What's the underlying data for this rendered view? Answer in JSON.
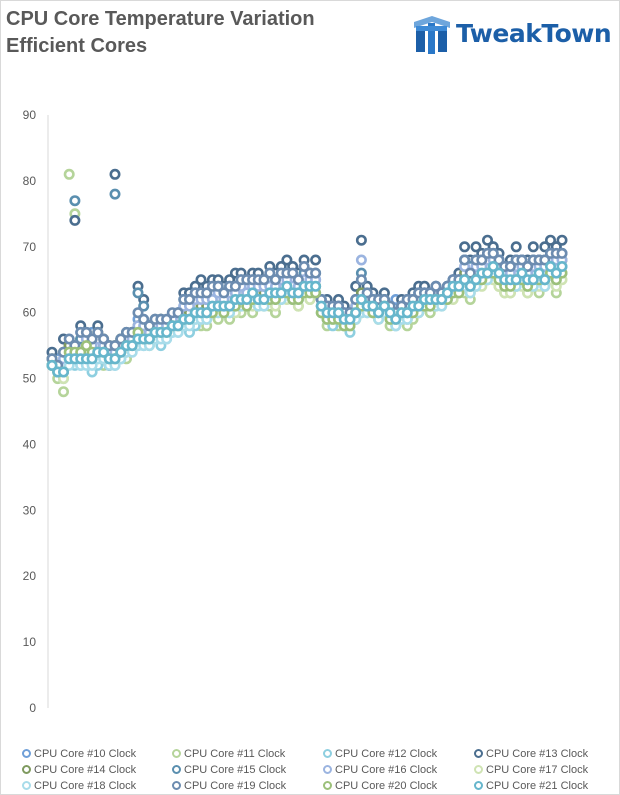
{
  "header": {
    "title_line1": "CPU Core Temperature Variation",
    "title_line2": "Efficient Cores"
  },
  "logo": {
    "text": "TweakTown",
    "icon": "tweaktown-logo-icon",
    "color": "#1c5fa8"
  },
  "chart_data": {
    "type": "scatter",
    "title": "CPU Core Temperature Variation Efficient Cores",
    "xlabel": "",
    "ylabel": "",
    "ylim": [
      0,
      90
    ],
    "yticks": [
      0,
      10,
      20,
      30,
      40,
      50,
      60,
      70,
      80,
      90
    ],
    "grid": false,
    "legend_position": "bottom",
    "samples": 90,
    "series": [
      {
        "name": "CPU Core #10 Clock",
        "color": "#6f9fd8",
        "values": [
          52,
          53,
          51,
          55,
          54,
          56,
          55,
          57,
          56,
          55,
          54,
          53,
          55,
          56,
          57,
          59,
          58,
          57,
          58,
          59,
          58,
          59,
          60,
          61,
          61,
          62,
          63,
          61,
          62,
          63,
          62,
          63,
          62,
          64,
          63,
          64,
          63,
          64,
          65,
          64,
          64,
          65,
          64,
          63,
          66,
          64,
          65,
          62,
          60,
          59,
          60,
          59,
          58,
          60,
          62,
          63,
          62,
          61,
          62,
          61,
          62,
          61,
          60,
          61,
          62,
          63,
          62,
          63,
          62,
          64,
          65,
          66,
          68,
          66,
          67,
          68,
          69,
          70,
          68,
          66,
          66,
          67,
          68,
          66,
          67,
          68,
          67,
          69,
          70,
          69
        ]
      },
      {
        "name": "CPU Core #11 Clock",
        "color": "#b5d49a",
        "values": [
          52,
          50,
          48,
          81,
          75,
          55,
          54,
          52,
          53,
          52,
          52,
          54,
          54,
          53,
          55,
          56,
          56,
          55,
          57,
          58,
          57,
          58,
          58,
          59,
          58,
          59,
          58,
          58,
          60,
          59,
          60,
          59,
          61,
          60,
          61,
          60,
          62,
          61,
          61,
          60,
          62,
          63,
          62,
          61,
          63,
          62,
          63,
          60,
          58,
          59,
          58,
          59,
          58,
          59,
          60,
          61,
          60,
          59,
          60,
          58,
          59,
          60,
          58,
          59,
          60,
          61,
          60,
          61,
          62,
          62,
          63,
          63,
          63,
          62,
          64,
          65,
          65,
          66,
          64,
          63,
          63,
          64,
          65,
          63,
          64,
          63,
          64,
          65,
          63,
          66
        ]
      },
      {
        "name": "CPU Core #12 Clock",
        "color": "#8ecfe0",
        "values": [
          52,
          51,
          50,
          53,
          52,
          52,
          53,
          51,
          52,
          54,
          53,
          52,
          53,
          54,
          55,
          55,
          55,
          56,
          57,
          55,
          56,
          57,
          57,
          58,
          57,
          58,
          59,
          59,
          60,
          61,
          60,
          61,
          61,
          62,
          62,
          63,
          62,
          62,
          63,
          62,
          63,
          64,
          63,
          62,
          64,
          64,
          64,
          61,
          59,
          58,
          59,
          58,
          57,
          59,
          61,
          61,
          61,
          60,
          61,
          59,
          58,
          59,
          59,
          60,
          61,
          62,
          61,
          62,
          62,
          63,
          64,
          64,
          65,
          64,
          65,
          66,
          66,
          67,
          66,
          65,
          64,
          65,
          66,
          64,
          65,
          66,
          65,
          67,
          66,
          67
        ]
      },
      {
        "name": "CPU Core #13 Clock",
        "color": "#4b6e8f",
        "values": [
          54,
          52,
          56,
          55,
          74,
          58,
          56,
          55,
          58,
          53,
          52,
          81,
          56,
          57,
          57,
          64,
          62,
          58,
          59,
          59,
          58,
          58,
          60,
          63,
          63,
          64,
          65,
          64,
          65,
          65,
          64,
          65,
          66,
          66,
          65,
          66,
          66,
          65,
          67,
          66,
          67,
          68,
          67,
          66,
          68,
          66,
          68,
          62,
          62,
          60,
          62,
          61,
          60,
          64,
          71,
          64,
          63,
          62,
          63,
          60,
          60,
          62,
          62,
          63,
          64,
          64,
          63,
          64,
          63,
          64,
          65,
          66,
          70,
          68,
          70,
          69,
          71,
          70,
          69,
          67,
          68,
          70,
          68,
          68,
          70,
          68,
          70,
          71,
          70,
          71
        ]
      },
      {
        "name": "CPU Core #14 Clock",
        "color": "#7f9a5f",
        "values": [
          53,
          52,
          54,
          55,
          55,
          56,
          55,
          56,
          57,
          56,
          55,
          55,
          56,
          56,
          57,
          58,
          57,
          58,
          58,
          59,
          58,
          59,
          59,
          60,
          60,
          61,
          61,
          61,
          62,
          62,
          61,
          62,
          62,
          63,
          63,
          63,
          63,
          63,
          64,
          63,
          64,
          64,
          64,
          63,
          65,
          64,
          64,
          61,
          60,
          60,
          60,
          59,
          59,
          61,
          63,
          62,
          61,
          61,
          62,
          60,
          60,
          61,
          61,
          61,
          62,
          62,
          62,
          63,
          63,
          63,
          64,
          65,
          66,
          65,
          66,
          67,
          67,
          68,
          67,
          65,
          65,
          66,
          67,
          65,
          66,
          67,
          66,
          68,
          67,
          68
        ]
      },
      {
        "name": "CPU Core #15 Clock",
        "color": "#5a8faf",
        "values": [
          52,
          51,
          52,
          54,
          77,
          56,
          57,
          54,
          55,
          55,
          54,
          78,
          55,
          56,
          56,
          63,
          61,
          57,
          58,
          58,
          58,
          59,
          59,
          62,
          62,
          63,
          63,
          62,
          63,
          64,
          63,
          64,
          64,
          65,
          64,
          65,
          64,
          64,
          65,
          65,
          65,
          66,
          65,
          64,
          66,
          65,
          66,
          62,
          61,
          60,
          61,
          60,
          59,
          62,
          66,
          62,
          62,
          61,
          62,
          60,
          59,
          61,
          61,
          62,
          63,
          63,
          62,
          63,
          63,
          63,
          64,
          65,
          68,
          67,
          68,
          68,
          69,
          69,
          68,
          66,
          67,
          68,
          67,
          67,
          68,
          67,
          68,
          69,
          68,
          69
        ]
      },
      {
        "name": "CPU Core #16 Clock",
        "color": "#9bb4e0",
        "values": [
          52,
          52,
          53,
          54,
          55,
          57,
          56,
          55,
          56,
          55,
          54,
          54,
          55,
          56,
          56,
          58,
          58,
          57,
          58,
          58,
          58,
          59,
          60,
          61,
          61,
          62,
          62,
          62,
          62,
          63,
          62,
          63,
          63,
          64,
          63,
          64,
          64,
          64,
          64,
          64,
          65,
          65,
          64,
          64,
          65,
          65,
          65,
          62,
          61,
          60,
          60,
          59,
          59,
          61,
          68,
          62,
          62,
          61,
          61,
          60,
          60,
          61,
          61,
          62,
          62,
          63,
          62,
          63,
          63,
          63,
          64,
          65,
          67,
          66,
          67,
          67,
          68,
          68,
          67,
          66,
          66,
          67,
          67,
          66,
          67,
          67,
          67,
          68,
          68,
          68
        ]
      },
      {
        "name": "CPU Core #17 Clock",
        "color": "#cfe3b3",
        "values": [
          52,
          51,
          50,
          53,
          53,
          53,
          54,
          53,
          53,
          53,
          53,
          53,
          54,
          54,
          55,
          56,
          56,
          56,
          57,
          57,
          57,
          58,
          58,
          59,
          59,
          59,
          59,
          59,
          60,
          60,
          60,
          60,
          60,
          61,
          61,
          61,
          61,
          61,
          62,
          61,
          62,
          62,
          62,
          61,
          63,
          62,
          63,
          60,
          59,
          59,
          59,
          58,
          58,
          59,
          60,
          60,
          60,
          59,
          60,
          59,
          59,
          59,
          59,
          60,
          60,
          61,
          61,
          61,
          61,
          62,
          62,
          63,
          64,
          63,
          64,
          64,
          65,
          65,
          64,
          63,
          63,
          64,
          64,
          63,
          64,
          64,
          64,
          65,
          64,
          65
        ]
      },
      {
        "name": "CPU Core #18 Clock",
        "color": "#a8dcea",
        "values": [
          52,
          51,
          51,
          52,
          53,
          52,
          52,
          52,
          53,
          53,
          52,
          52,
          53,
          54,
          54,
          55,
          55,
          55,
          56,
          56,
          56,
          57,
          57,
          58,
          58,
          59,
          59,
          59,
          60,
          60,
          60,
          60,
          61,
          61,
          61,
          62,
          61,
          61,
          62,
          62,
          62,
          63,
          62,
          62,
          63,
          63,
          63,
          60,
          59,
          59,
          59,
          58,
          58,
          59,
          60,
          60,
          60,
          59,
          60,
          59,
          58,
          59,
          59,
          60,
          60,
          61,
          61,
          61,
          61,
          62,
          63,
          63,
          64,
          63,
          64,
          65,
          65,
          66,
          65,
          64,
          64,
          64,
          65,
          64,
          64,
          65,
          64,
          66,
          65,
          66
        ]
      },
      {
        "name": "CPU Core #19 Clock",
        "color": "#6c8cb0",
        "values": [
          53,
          52,
          54,
          56,
          55,
          57,
          57,
          56,
          57,
          56,
          55,
          55,
          56,
          57,
          57,
          60,
          59,
          58,
          59,
          59,
          59,
          60,
          60,
          62,
          62,
          63,
          63,
          63,
          64,
          64,
          63,
          64,
          64,
          65,
          65,
          65,
          65,
          65,
          66,
          65,
          66,
          66,
          66,
          65,
          67,
          66,
          66,
          62,
          61,
          61,
          61,
          60,
          60,
          62,
          65,
          63,
          62,
          62,
          62,
          61,
          60,
          61,
          62,
          62,
          63,
          63,
          63,
          64,
          63,
          64,
          65,
          65,
          68,
          66,
          68,
          68,
          69,
          69,
          68,
          67,
          67,
          68,
          68,
          67,
          68,
          68,
          68,
          69,
          69,
          69
        ]
      },
      {
        "name": "CPU Core #20 Clock",
        "color": "#9cc07a",
        "values": [
          52,
          51,
          51,
          54,
          54,
          54,
          55,
          54,
          54,
          54,
          53,
          53,
          54,
          55,
          55,
          57,
          56,
          56,
          57,
          57,
          57,
          58,
          58,
          59,
          59,
          60,
          60,
          60,
          60,
          61,
          60,
          61,
          61,
          62,
          61,
          62,
          62,
          62,
          62,
          62,
          63,
          63,
          62,
          62,
          63,
          63,
          63,
          60,
          59,
          59,
          59,
          58,
          58,
          60,
          61,
          61,
          60,
          60,
          61,
          59,
          59,
          60,
          60,
          60,
          61,
          61,
          61,
          62,
          62,
          62,
          63,
          63,
          65,
          64,
          65,
          65,
          66,
          66,
          65,
          64,
          64,
          65,
          65,
          64,
          65,
          65,
          65,
          66,
          65,
          66
        ]
      },
      {
        "name": "CPU Core #21 Clock",
        "color": "#66b6cc",
        "values": [
          52,
          51,
          51,
          53,
          53,
          53,
          53,
          53,
          54,
          54,
          53,
          53,
          54,
          55,
          55,
          56,
          56,
          56,
          57,
          57,
          57,
          58,
          58,
          59,
          59,
          60,
          60,
          60,
          61,
          61,
          61,
          61,
          62,
          62,
          62,
          63,
          62,
          62,
          63,
          63,
          63,
          64,
          63,
          63,
          64,
          64,
          64,
          61,
          60,
          60,
          60,
          59,
          59,
          60,
          62,
          61,
          61,
          60,
          61,
          60,
          59,
          60,
          60,
          61,
          61,
          62,
          62,
          62,
          62,
          63,
          64,
          64,
          65,
          64,
          65,
          66,
          66,
          67,
          66,
          65,
          65,
          65,
          66,
          65,
          65,
          66,
          65,
          67,
          66,
          67
        ]
      }
    ]
  }
}
